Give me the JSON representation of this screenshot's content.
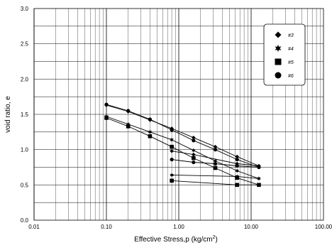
{
  "chart_data": {
    "type": "scatter",
    "x_scale": "log",
    "xlim": [
      0.01,
      100
    ],
    "ylim": [
      0,
      3
    ],
    "grid": true,
    "legend_position": "top-right",
    "xlabel_main": "Effective Stress,p (kg/cm",
    "xlabel_sup": "2",
    "xlabel_end": ")",
    "ylabel": "void ratio, e",
    "x_tick_labels": [
      "0.01",
      "0.10",
      "1.00",
      "10.00",
      "100.00"
    ],
    "y_tick_labels": [
      "0.0",
      "0.5",
      "1.0",
      "1.5",
      "2.0",
      "2.5",
      "3.0"
    ],
    "series": [
      {
        "name": "#3",
        "marker": "diamond",
        "points": [
          [
            0.1,
            1.63
          ],
          [
            0.2,
            1.54
          ],
          [
            0.4,
            1.42
          ],
          [
            0.8,
            1.3
          ],
          [
            1.6,
            1.17
          ],
          [
            3.2,
            1.04
          ],
          [
            6.4,
            0.9
          ],
          [
            12.8,
            0.77
          ]
        ],
        "unload": [
          [
            12.8,
            0.77
          ],
          [
            6.4,
            0.8
          ],
          [
            1.6,
            0.93
          ],
          [
            0.8,
            0.98
          ]
        ]
      },
      {
        "name": "#4",
        "marker": "star",
        "points": [
          [
            0.1,
            1.47
          ],
          [
            0.2,
            1.36
          ],
          [
            0.4,
            1.25
          ],
          [
            0.8,
            1.14
          ],
          [
            1.6,
            0.99
          ],
          [
            3.2,
            0.84
          ],
          [
            6.4,
            0.7
          ],
          [
            12.8,
            0.59
          ]
        ],
        "unload": [
          [
            12.8,
            0.59
          ],
          [
            6.4,
            0.62
          ],
          [
            0.8,
            0.64
          ]
        ]
      },
      {
        "name": "#5",
        "marker": "square",
        "points": [
          [
            0.1,
            1.45
          ],
          [
            0.2,
            1.33
          ],
          [
            0.4,
            1.19
          ],
          [
            0.8,
            1.04
          ],
          [
            1.6,
            0.88
          ],
          [
            3.2,
            0.74
          ],
          [
            6.4,
            0.6
          ],
          [
            12.8,
            0.5
          ]
        ],
        "unload": [
          [
            12.8,
            0.5
          ],
          [
            6.4,
            0.5
          ],
          [
            0.8,
            0.56
          ]
        ]
      },
      {
        "name": "#6",
        "marker": "circle",
        "points": [
          [
            0.1,
            1.64
          ],
          [
            0.2,
            1.55
          ],
          [
            0.4,
            1.43
          ],
          [
            0.8,
            1.28
          ],
          [
            1.6,
            1.13
          ],
          [
            3.2,
            1.0
          ],
          [
            6.4,
            0.86
          ],
          [
            12.8,
            0.75
          ]
        ],
        "unload": [
          [
            12.8,
            0.75
          ],
          [
            6.4,
            0.77
          ],
          [
            3.2,
            0.8
          ],
          [
            1.6,
            0.82
          ],
          [
            0.8,
            0.86
          ]
        ]
      }
    ]
  }
}
